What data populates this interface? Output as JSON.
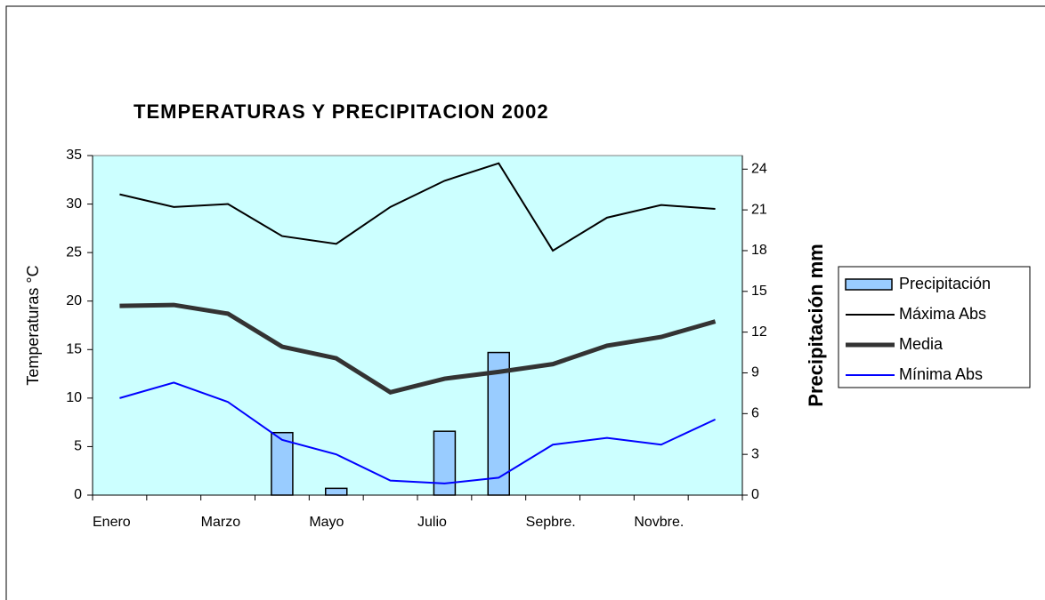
{
  "chart_data": {
    "type": "bar-line",
    "title": "TEMPERATURAS Y PRECIPITACION 2002",
    "y_label": "Temperaturas °C",
    "y2_label": "Precipitación mm",
    "categories": [
      "Enero",
      null,
      "Marzo",
      null,
      "Mayo",
      null,
      "Julio",
      null,
      "Sepbre.",
      null,
      "Novbre.",
      null
    ],
    "ylim": [
      0,
      35
    ],
    "yticks": [
      0,
      5,
      10,
      15,
      20,
      25,
      30,
      35
    ],
    "y2lim": [
      0,
      25
    ],
    "y2ticks": [
      0,
      3,
      6,
      9,
      12,
      15,
      18,
      21,
      24
    ],
    "background": "#ccffff",
    "series": [
      {
        "name": "Precipitación",
        "type": "bar",
        "axis": "y2",
        "color": "#99ccff",
        "values": [
          0,
          0,
          0,
          4.6,
          0.5,
          0,
          4.7,
          10.5,
          0,
          0,
          0,
          0
        ]
      },
      {
        "name": "Máxima Abs",
        "type": "line",
        "color": "#000000",
        "values": [
          31,
          29.7,
          30,
          26.7,
          25.9,
          29.7,
          32.4,
          34.2,
          25.2,
          28.6,
          29.9,
          29.5
        ]
      },
      {
        "name": "Media",
        "type": "line",
        "color": "#333333",
        "values": [
          19.5,
          19.6,
          18.7,
          15.3,
          14.1,
          10.6,
          12,
          12.7,
          13.5,
          15.4,
          16.3,
          17.9
        ]
      },
      {
        "name": "Mínima Abs",
        "type": "line",
        "color": "#0000ff",
        "values": [
          10,
          11.6,
          9.6,
          5.7,
          4.2,
          1.5,
          1.2,
          1.8,
          5.2,
          5.9,
          5.2,
          7.8
        ]
      }
    ]
  }
}
